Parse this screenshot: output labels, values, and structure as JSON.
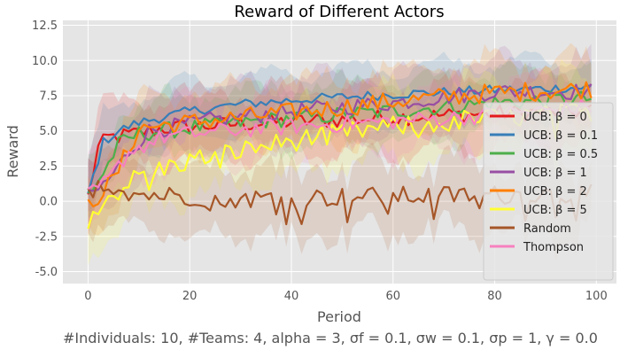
{
  "chart_data": {
    "type": "line",
    "title": "Reward of Different Actors",
    "xlabel": "Period",
    "ylabel": "Reward",
    "xlim": [
      -4.95,
      103.95
    ],
    "ylim": [
      -5.85,
      12.85
    ],
    "x_ticks": [
      0,
      20,
      40,
      60,
      80,
      100
    ],
    "y_ticks": [
      -5.0,
      -2.5,
      0.0,
      2.5,
      5.0,
      7.5,
      10.0,
      12.5
    ],
    "grid": true,
    "legend_position": "right",
    "caption": "#Individuals: 10,  #Teams: 4,  alpha = 3,  σf = 0.1,  σw = 0.1,  σp = 1, γ = 0.0",
    "x_range": [
      0,
      99
    ],
    "series": [
      {
        "name": "UCB: β = 0",
        "color": "#e41a1c",
        "key_points": [
          [
            0,
            0.3
          ],
          [
            2,
            3.8
          ],
          [
            4,
            4.5
          ],
          [
            8,
            4.7
          ],
          [
            15,
            5.2
          ],
          [
            30,
            5.5
          ],
          [
            50,
            5.8
          ],
          [
            70,
            6.1
          ],
          [
            85,
            6.3
          ],
          [
            99,
            6.4
          ]
        ]
      },
      {
        "name": "UCB: β = 0.1",
        "color": "#377eb8",
        "key_points": [
          [
            0,
            0.5
          ],
          [
            3,
            4.2
          ],
          [
            6,
            5.0
          ],
          [
            10,
            5.6
          ],
          [
            20,
            6.4
          ],
          [
            30,
            6.9
          ],
          [
            45,
            7.3
          ],
          [
            60,
            7.6
          ],
          [
            80,
            7.9
          ],
          [
            99,
            8.1
          ]
        ]
      },
      {
        "name": "UCB: β = 0.5",
        "color": "#4daf4a",
        "key_points": [
          [
            0,
            0.5
          ],
          [
            3,
            2.0
          ],
          [
            6,
            4.0
          ],
          [
            10,
            4.8
          ],
          [
            25,
            5.4
          ],
          [
            40,
            5.9
          ],
          [
            60,
            6.4
          ],
          [
            80,
            7.0
          ],
          [
            99,
            7.3
          ]
        ]
      },
      {
        "name": "UCB: β = 1",
        "color": "#984ea3",
        "key_points": [
          [
            0,
            0.2
          ],
          [
            4,
            1.5
          ],
          [
            8,
            3.5
          ],
          [
            12,
            5.0
          ],
          [
            25,
            5.8
          ],
          [
            40,
            6.4
          ],
          [
            60,
            7.0
          ],
          [
            80,
            7.8
          ],
          [
            99,
            7.8
          ]
        ]
      },
      {
        "name": "UCB: β = 2",
        "color": "#ff7f00",
        "key_points": [
          [
            0,
            -0.3
          ],
          [
            5,
            1.5
          ],
          [
            10,
            5.2
          ],
          [
            20,
            5.6
          ],
          [
            40,
            6.3
          ],
          [
            60,
            7.1
          ],
          [
            80,
            7.7
          ],
          [
            99,
            8.0
          ]
        ]
      },
      {
        "name": "UCB: β = 5",
        "color": "#ffff33",
        "key_points": [
          [
            0,
            -0.8
          ],
          [
            5,
            0.5
          ],
          [
            10,
            1.8
          ],
          [
            20,
            2.9
          ],
          [
            30,
            3.6
          ],
          [
            45,
            4.6
          ],
          [
            60,
            5.3
          ],
          [
            75,
            5.8
          ],
          [
            90,
            6.1
          ],
          [
            99,
            6.4
          ]
        ]
      },
      {
        "name": "Random",
        "color": "#a65628",
        "key_points": [
          [
            0,
            1.6
          ],
          [
            10,
            0.5
          ],
          [
            30,
            0.2
          ],
          [
            50,
            0.3
          ],
          [
            70,
            0.4
          ],
          [
            90,
            0.5
          ],
          [
            99,
            0.5
          ]
        ]
      },
      {
        "name": "Thompson",
        "color": "#f781bf",
        "key_points": [
          [
            0,
            0.3
          ],
          [
            4,
            1.5
          ],
          [
            8,
            3.5
          ],
          [
            15,
            4.6
          ],
          [
            30,
            5.1
          ],
          [
            50,
            5.5
          ],
          [
            70,
            5.9
          ],
          [
            85,
            6.3
          ],
          [
            99,
            6.7
          ]
        ]
      }
    ]
  }
}
